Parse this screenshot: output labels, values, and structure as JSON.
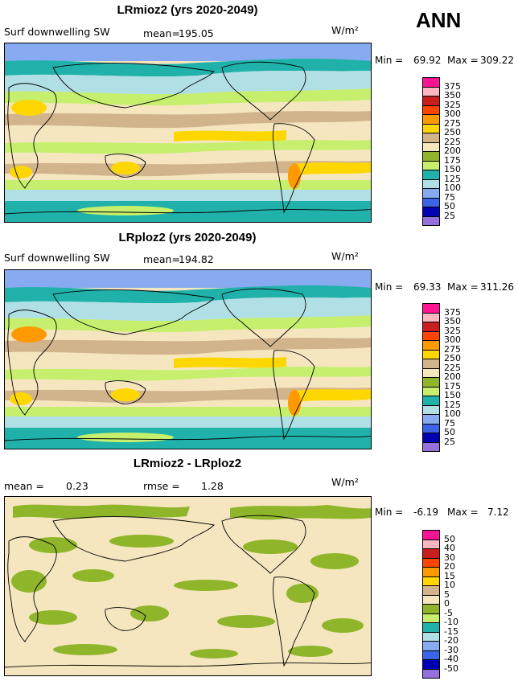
{
  "season": "ANN",
  "panels": [
    {
      "title": "LRmioz2 (yrs 2020-2049)",
      "left_label": "Surf downwelling SW",
      "mean_label": "mean=",
      "mean_value": "195.05",
      "rmse_label": "",
      "rmse_value": "",
      "units": "W/m²",
      "min_label": "Min =",
      "min_value": "69.92",
      "max_label": "Max =",
      "max_value": "309.22",
      "colorbar": {
        "ticks": [
          "375",
          "350",
          "325",
          "300",
          "275",
          "250",
          "225",
          "200",
          "175",
          "150",
          "125",
          "100",
          "75",
          "50",
          "25"
        ],
        "colors": [
          "#ff1493",
          "#ffb6c1",
          "#c81e1e",
          "#ff4500",
          "#ff9900",
          "#ffd700",
          "#d2b48c",
          "#f5e6c0",
          "#8fb52a",
          "#c5ef6d",
          "#20b2aa",
          "#b0e0e6",
          "#87aaf0",
          "#3c64e6",
          "#0000b4",
          "#9370db"
        ]
      }
    },
    {
      "title": "LRploz2 (yrs 2020-2049)",
      "left_label": "Surf downwelling SW",
      "mean_label": "mean=",
      "mean_value": "194.82",
      "rmse_label": "",
      "rmse_value": "",
      "units": "W/m²",
      "min_label": "Min =",
      "min_value": "69.33",
      "max_label": "Max =",
      "max_value": "311.26",
      "colorbar": {
        "ticks": [
          "375",
          "350",
          "325",
          "300",
          "275",
          "250",
          "225",
          "200",
          "175",
          "150",
          "125",
          "100",
          "75",
          "50",
          "25"
        ],
        "colors": [
          "#ff1493",
          "#ffb6c1",
          "#c81e1e",
          "#ff4500",
          "#ff9900",
          "#ffd700",
          "#d2b48c",
          "#f5e6c0",
          "#8fb52a",
          "#c5ef6d",
          "#20b2aa",
          "#b0e0e6",
          "#87aaf0",
          "#3c64e6",
          "#0000b4",
          "#9370db"
        ]
      }
    },
    {
      "title": "LRmioz2 - LRploz2",
      "left_label": "mean =",
      "mean_label": "",
      "mean_value": "0.23",
      "rmse_label": "rmse =",
      "rmse_value": "1.28",
      "units": "W/m²",
      "min_label": "Min =",
      "min_value": "-6.19",
      "max_label": "Max =",
      "max_value": "7.12",
      "colorbar": {
        "ticks": [
          "50",
          "40",
          "30",
          "20",
          "15",
          "10",
          "5",
          "0",
          "-5",
          "-10",
          "-15",
          "-20",
          "-30",
          "-40",
          "-50"
        ],
        "colors": [
          "#ff1493",
          "#ffb6c1",
          "#c81e1e",
          "#ff4500",
          "#ff9900",
          "#ffd700",
          "#d2b48c",
          "#f5e6c0",
          "#8fb52a",
          "#c5ef6d",
          "#20b2aa",
          "#b0e0e6",
          "#87aaf0",
          "#3c64e6",
          "#0000b4",
          "#9370db"
        ]
      }
    }
  ]
}
